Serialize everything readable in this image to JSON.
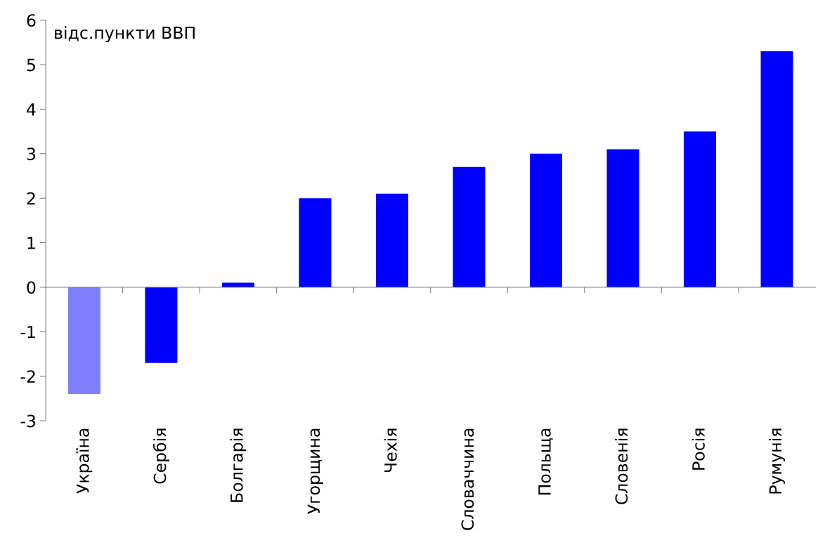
{
  "chart_data": {
    "type": "bar",
    "ylabel": "відс.пункти ВВП",
    "categories": [
      "Україна",
      "Сербія",
      "Болгарія",
      "Угорщина",
      "Чехія",
      "Словаччина",
      "Польща",
      "Словенія",
      "Росія",
      "Румунія"
    ],
    "values": [
      -2.4,
      -1.7,
      0.1,
      2.0,
      2.1,
      2.7,
      3.0,
      3.1,
      3.5,
      5.3
    ],
    "colors": [
      "#7f7fff",
      "#0000ff",
      "#0000ff",
      "#0000ff",
      "#0000ff",
      "#0000ff",
      "#0000ff",
      "#0000ff",
      "#0000ff",
      "#0000ff"
    ],
    "ylim": [
      -3,
      6
    ],
    "yticks": [
      -3,
      -2,
      -1,
      0,
      1,
      2,
      3,
      4,
      5,
      6
    ]
  }
}
